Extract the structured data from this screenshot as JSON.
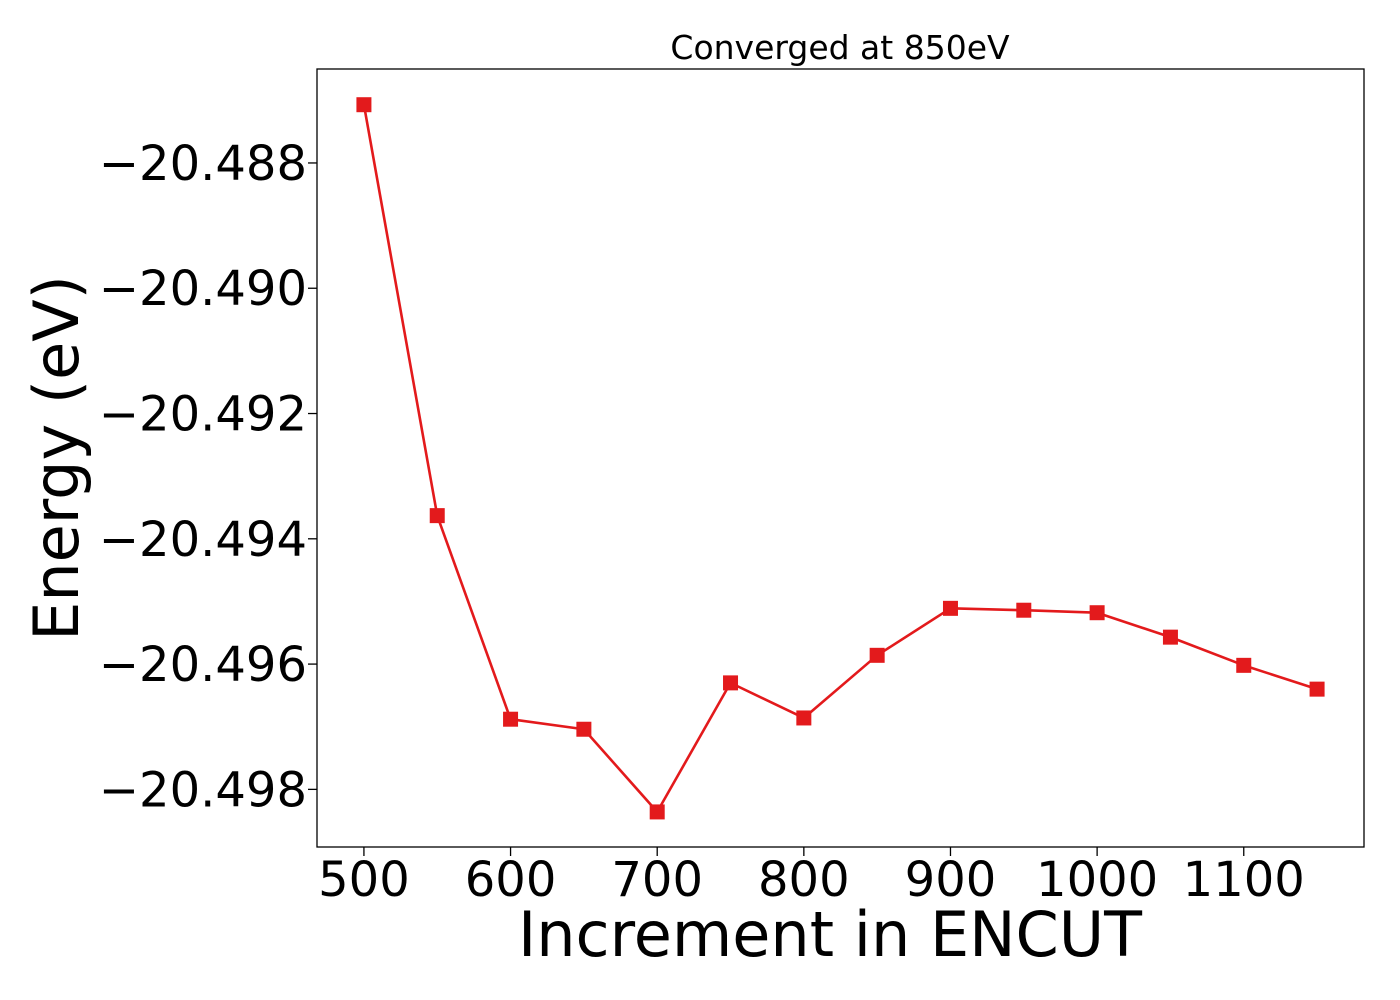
{
  "chart_data": {
    "type": "line",
    "title": "Converged at 850eV",
    "xlabel": "Increment in ENCUT",
    "ylabel": "Energy (eV)",
    "x": [
      500,
      550,
      600,
      650,
      700,
      750,
      800,
      850,
      900,
      950,
      1000,
      1050,
      1100,
      1150
    ],
    "series": [
      {
        "values": [
          -20.48707,
          -20.49363,
          -20.49688,
          -20.49704,
          -20.49836,
          -20.4963,
          -20.49686,
          -20.49586,
          -20.49511,
          -20.49514,
          -20.49518,
          -20.49557,
          -20.49602,
          -20.4964
        ],
        "color": "#e31a1c",
        "marker": "square"
      }
    ],
    "xlim": [
      468,
      1182
    ],
    "ylim": [
      -20.49892,
      -20.4865
    ],
    "xticks": [
      500,
      600,
      700,
      800,
      900,
      1000,
      1100
    ],
    "xtick_labels": [
      "500",
      "600",
      "700",
      "800",
      "900",
      "1000",
      "1100"
    ],
    "yticks": [
      -20.488,
      -20.49,
      -20.492,
      -20.494,
      -20.496,
      -20.498
    ],
    "ytick_labels": [
      "−20.488",
      "−20.490",
      "−20.492",
      "−20.494",
      "−20.496",
      "−20.498"
    ],
    "grid": false,
    "legend": "none"
  }
}
